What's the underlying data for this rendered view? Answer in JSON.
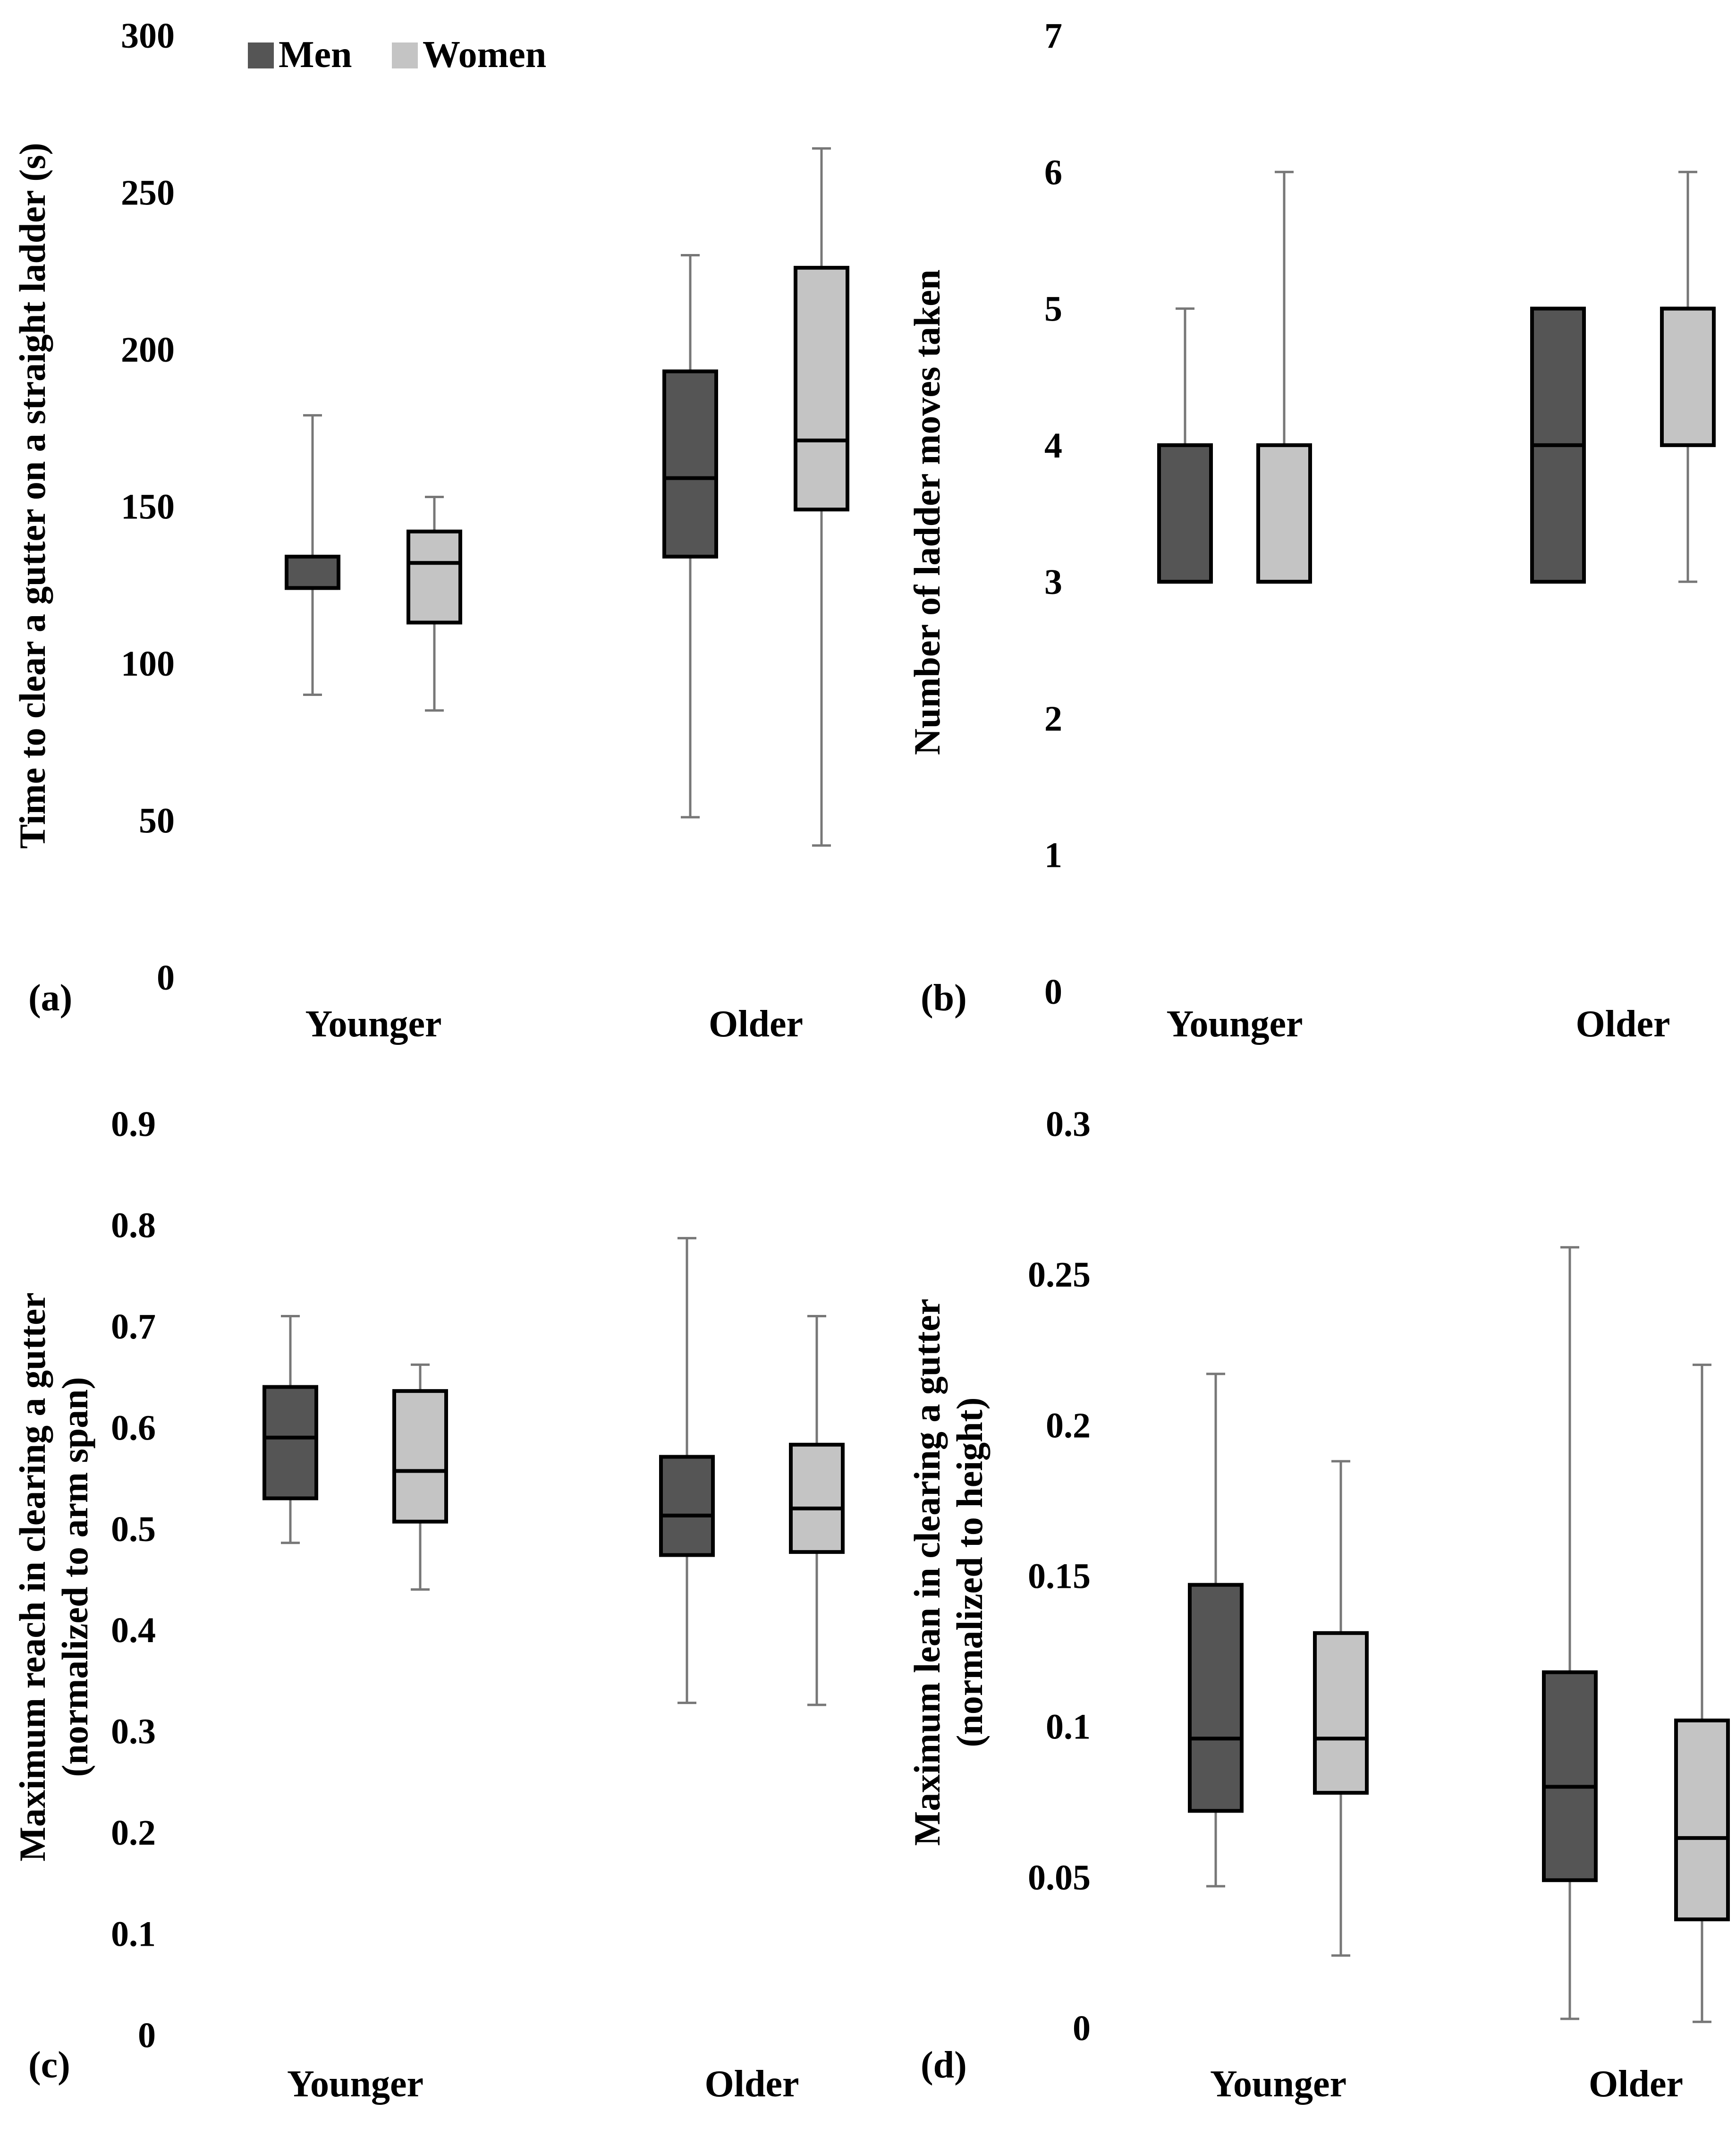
{
  "colors": {
    "men": "#555555",
    "women": "#c4c4c4",
    "outline": "#000000",
    "whisker": "#777777"
  },
  "legend": {
    "men": "Men",
    "women": "Women"
  },
  "chart_data": [
    {
      "type": "boxplot",
      "panel_label": "(a)",
      "ylabel": "Time to clear a gutter on a straight ladder (s)",
      "ylim": [
        0,
        300
      ],
      "yticks": [
        0,
        50,
        100,
        150,
        200,
        250,
        300
      ],
      "categories": [
        "Younger",
        "Older"
      ],
      "series": [
        {
          "name": "Men",
          "boxes": [
            {
              "min": 90,
              "q1": 124,
              "median": 124,
              "q3": 134,
              "max": 179
            },
            {
              "min": 51,
              "q1": 134,
              "median": 159,
              "q3": 193,
              "max": 230
            }
          ]
        },
        {
          "name": "Women",
          "boxes": [
            {
              "min": 85,
              "q1": 113,
              "median": 132,
              "q3": 142,
              "max": 153
            },
            {
              "min": 42,
              "q1": 149,
              "median": 171,
              "q3": 226,
              "max": 264
            }
          ]
        }
      ]
    },
    {
      "type": "boxplot",
      "panel_label": "(b)",
      "ylabel": "Number of ladder moves taken",
      "ylim": [
        0,
        7
      ],
      "yticks": [
        0,
        1,
        2,
        3,
        4,
        5,
        6,
        7
      ],
      "categories": [
        "Younger",
        "Older"
      ],
      "series": [
        {
          "name": "Men",
          "boxes": [
            {
              "min": 3,
              "q1": 3,
              "median": 3,
              "q3": 4,
              "max": 5
            },
            {
              "min": 3,
              "q1": 3,
              "median": 4,
              "q3": 5,
              "max": 5
            }
          ]
        },
        {
          "name": "Women",
          "boxes": [
            {
              "min": 3,
              "q1": 3,
              "median": 3,
              "q3": 4,
              "max": 6
            },
            {
              "min": 3,
              "q1": 4,
              "median": 5,
              "q3": 5,
              "max": 6
            }
          ]
        }
      ]
    },
    {
      "type": "boxplot",
      "panel_label": "(c)",
      "ylabel": [
        "Maximum reach in clearing a gutter",
        "(normalized to arm span)"
      ],
      "ylim": [
        0,
        0.9
      ],
      "yticks": [
        "0",
        "0.1",
        "0.2",
        "0.3",
        "0.4",
        "0.5",
        "0.6",
        "0.7",
        "0.8",
        "0.9"
      ],
      "categories": [
        "Younger",
        "Older"
      ],
      "series": [
        {
          "name": "Men",
          "boxes": [
            {
              "min": 0.486,
              "q1": 0.53,
              "median": 0.59,
              "q3": 0.64,
              "max": 0.71
            },
            {
              "min": 0.328,
              "q1": 0.474,
              "median": 0.513,
              "q3": 0.571,
              "max": 0.787
            }
          ]
        },
        {
          "name": "Women",
          "boxes": [
            {
              "min": 0.44,
              "q1": 0.507,
              "median": 0.557,
              "q3": 0.636,
              "max": 0.662
            },
            {
              "min": 0.326,
              "q1": 0.477,
              "median": 0.52,
              "q3": 0.583,
              "max": 0.71
            }
          ]
        }
      ]
    },
    {
      "type": "boxplot",
      "panel_label": "(d)",
      "ylabel": [
        "Maximum lean in clearing a gutter",
        "(normalized to height)"
      ],
      "ylim": [
        0,
        0.3
      ],
      "yticks": [
        "0",
        "0.05",
        "0.1",
        "0.15",
        "0.2",
        "0.25",
        "0.3"
      ],
      "categories": [
        "Younger",
        "Older"
      ],
      "series": [
        {
          "name": "Men",
          "boxes": [
            {
              "min": 0.047,
              "q1": 0.072,
              "median": 0.096,
              "q3": 0.147,
              "max": 0.217
            },
            {
              "min": 0.003,
              "q1": 0.049,
              "median": 0.08,
              "q3": 0.118,
              "max": 0.259
            }
          ]
        },
        {
          "name": "Women",
          "boxes": [
            {
              "min": 0.024,
              "q1": 0.078,
              "median": 0.096,
              "q3": 0.131,
              "max": 0.188
            },
            {
              "min": 0.002,
              "q1": 0.036,
              "median": 0.063,
              "q3": 0.102,
              "max": 0.22
            }
          ]
        }
      ]
    }
  ]
}
